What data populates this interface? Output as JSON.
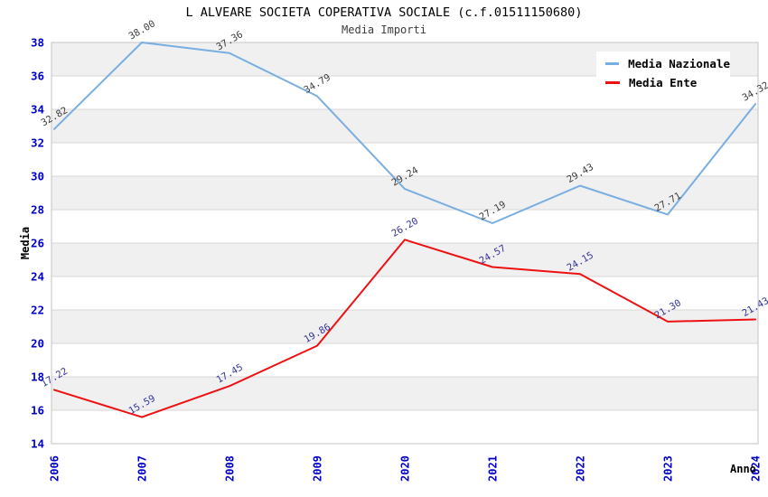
{
  "header": {
    "title": "L ALVEARE SOCIETA COPERATIVA SOCIALE (c.f.01511150680)",
    "subtitle": "Media Importi"
  },
  "axes": {
    "y_label": "Media",
    "x_label": "Anno",
    "y_ticks": [
      38,
      36,
      34,
      32,
      30,
      28,
      26,
      24,
      22,
      20,
      18,
      16,
      14
    ]
  },
  "legend": {
    "items": [
      {
        "label": "Media Nazionale",
        "color": "#79AEE2"
      },
      {
        "label": "Media Ente",
        "color": "#EE1111"
      }
    ]
  },
  "colors": {
    "band_gray": "#f0f0f0",
    "band_white": "#ffffff",
    "gridline": "#d7d7d7",
    "plot_border": "#c3c3c3",
    "tick_label": "#0000cc",
    "nazionale_line": "#79AEE2",
    "nazionale_value_label": "#3c3c3c",
    "ente_line": "#EE1111",
    "ente_value_label": "#333399"
  },
  "chart_data": {
    "type": "line",
    "title": "L ALVEARE SOCIETA COPERATIVA SOCIALE (c.f.01511150680)",
    "subtitle": "Media Importi",
    "xlabel": "Anno",
    "ylabel": "Media",
    "ylim": [
      14,
      38
    ],
    "y_step": 2,
    "grid": "horizontal-bands",
    "legend_position": "top-right-inside",
    "categories": [
      "2006",
      "2007",
      "2008",
      "2009",
      "2020",
      "2021",
      "2022",
      "2023",
      "2024"
    ],
    "series": [
      {
        "name": "Media Nazionale",
        "color": "#79AEE2",
        "label_color": "#3c3c3c",
        "values": [
          32.82,
          38.0,
          37.36,
          34.79,
          29.24,
          27.19,
          29.43,
          27.71,
          34.32
        ]
      },
      {
        "name": "Media Ente",
        "color": "#EE1111",
        "label_color": "#333399",
        "values": [
          17.22,
          15.59,
          17.45,
          19.86,
          26.2,
          24.57,
          24.15,
          21.3,
          21.43
        ]
      }
    ]
  }
}
